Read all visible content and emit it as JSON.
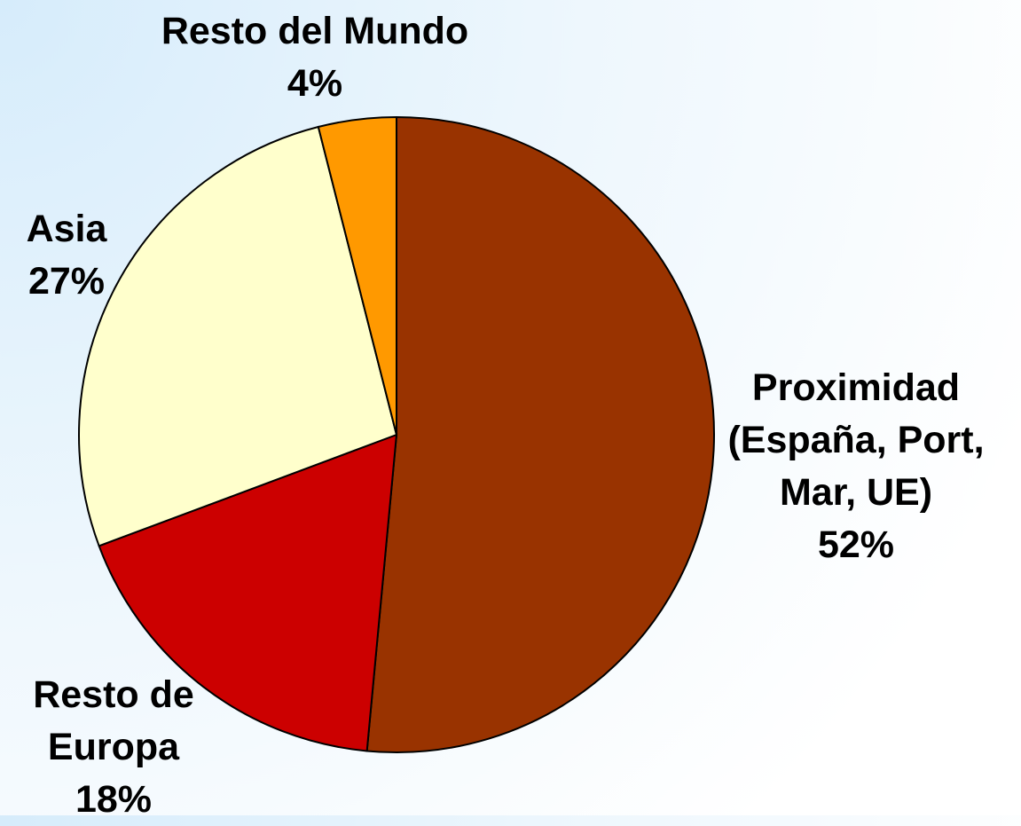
{
  "chart_data": {
    "type": "pie",
    "categories": [
      "Proximidad (España, Port, Mar, UE)",
      "Resto de Europa",
      "Asia",
      "Resto del Mundo"
    ],
    "values": [
      52,
      18,
      27,
      4
    ],
    "value_labels": [
      "52%",
      "18%",
      "27%",
      "4%"
    ],
    "colors": [
      "#993300",
      "#cc0000",
      "#ffffcc",
      "#ff9900"
    ]
  }
}
